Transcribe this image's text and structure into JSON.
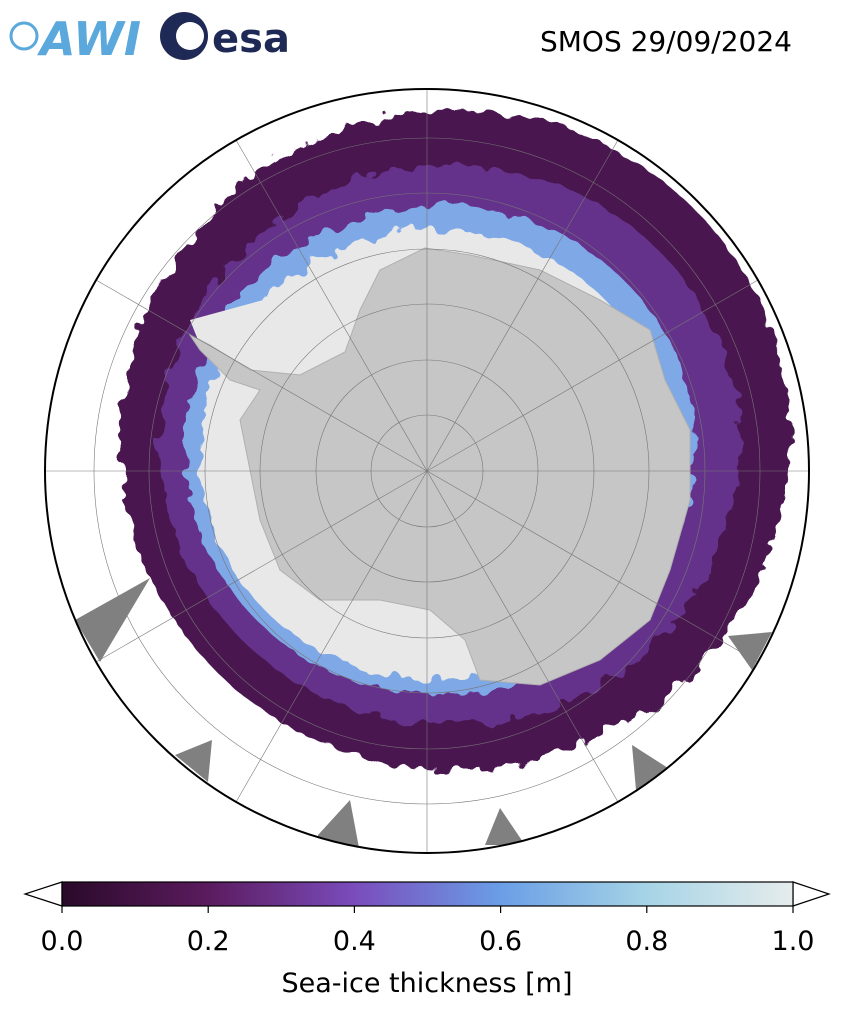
{
  "logos": {
    "awi": "AWI",
    "esa": "esa"
  },
  "header": {
    "title": "SMOS 29/09/2024"
  },
  "colorbar": {
    "label": "Sea-ice thickness [m]",
    "lim": [
      0,
      1
    ],
    "ticks": [
      {
        "value": 0,
        "label": "0.0"
      },
      {
        "value": 0.2,
        "label": "0.2"
      },
      {
        "value": 0.4,
        "label": "0.4"
      },
      {
        "value": 0.6,
        "label": "0.6"
      },
      {
        "value": 0.8,
        "label": "0.8"
      },
      {
        "value": 1,
        "label": "1.0"
      }
    ]
  }
}
